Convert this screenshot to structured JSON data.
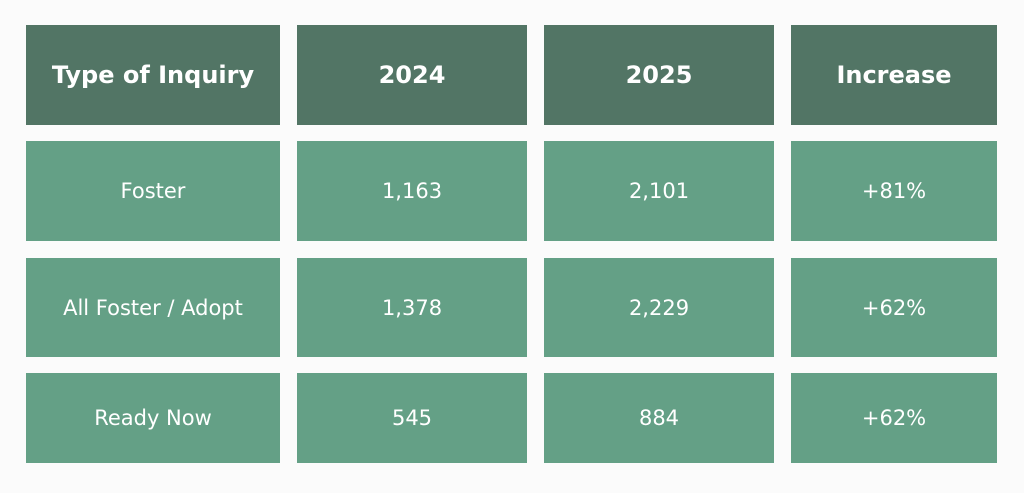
{
  "table": {
    "header": [
      "Type of Inquiry",
      "2024",
      "2025",
      "Increase"
    ],
    "rows": [
      [
        "Foster",
        "1,163",
        "2,101",
        "+81%"
      ],
      [
        "All Foster / Adopt",
        "1,378",
        "2,229",
        "+62%"
      ],
      [
        "Ready Now",
        "545",
        "884",
        "+62%"
      ]
    ]
  }
}
